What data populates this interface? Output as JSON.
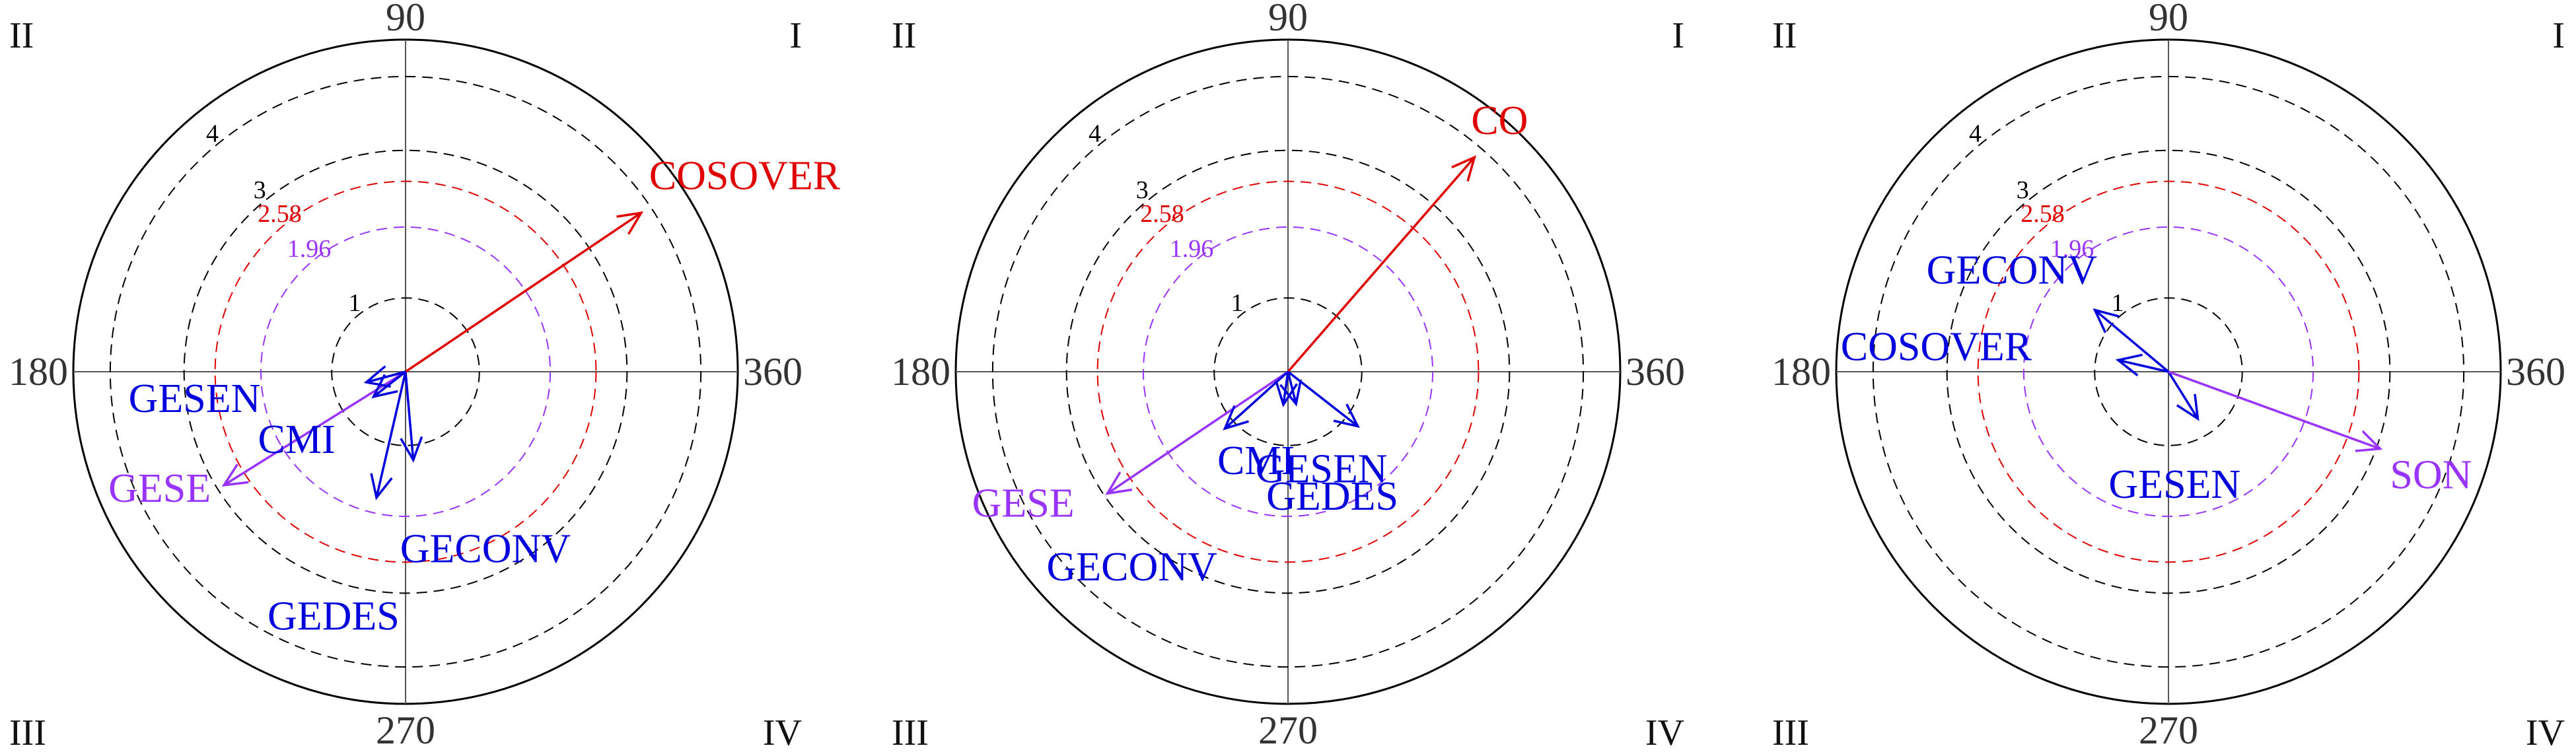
{
  "chart_data": [
    {
      "type": "polar-vector",
      "radius_max": 4.5,
      "rings": [
        {
          "value": 1,
          "label": "1",
          "color": "#000000"
        },
        {
          "value": 1.96,
          "label": "1.96",
          "color": "#9933ff"
        },
        {
          "value": 2.58,
          "label": "2.58",
          "color": "#e00000"
        },
        {
          "value": 3,
          "label": "3",
          "color": "#000000"
        },
        {
          "value": 4,
          "label": "4",
          "color": "#000000"
        }
      ],
      "angle_ticks": [
        "90",
        "180",
        "270",
        "360"
      ],
      "quadrant_labels": [
        "I",
        "II",
        "III",
        "IV"
      ],
      "vectors": [
        {
          "name": "COSOVER",
          "angle_deg": 34,
          "magnitude": 3.85,
          "color": "#e00000"
        },
        {
          "name": "GESE",
          "angle_deg": 212,
          "magnitude": 2.9,
          "color": "#9933ff"
        },
        {
          "name": "GESEN",
          "angle_deg": 195,
          "magnitude": 0.55,
          "color": "#0000dd"
        },
        {
          "name": "CMI",
          "angle_deg": 218,
          "magnitude": 0.55,
          "color": "#0000dd"
        },
        {
          "name": "GEDES",
          "angle_deg": 257,
          "magnitude": 1.75,
          "color": "#0000dd"
        },
        {
          "name": "GECONV",
          "angle_deg": 275,
          "magnitude": 1.2,
          "color": "#0000dd"
        }
      ]
    },
    {
      "type": "polar-vector",
      "radius_max": 4.5,
      "rings": [
        {
          "value": 1,
          "label": "1",
          "color": "#000000"
        },
        {
          "value": 1.96,
          "label": "1.96",
          "color": "#9933ff"
        },
        {
          "value": 2.58,
          "label": "2.58",
          "color": "#e00000"
        },
        {
          "value": 3,
          "label": "3",
          "color": "#000000"
        },
        {
          "value": 4,
          "label": "4",
          "color": "#000000"
        }
      ],
      "angle_ticks": [
        "90",
        "180",
        "270",
        "360"
      ],
      "quadrant_labels": [
        "I",
        "II",
        "III",
        "IV"
      ],
      "vectors": [
        {
          "name": "CO",
          "angle_deg": 49,
          "magnitude": 3.85,
          "color": "#e00000"
        },
        {
          "name": "GESE",
          "angle_deg": 214,
          "magnitude": 2.95,
          "color": "#9933ff"
        },
        {
          "name": "GECONV",
          "angle_deg": 222,
          "magnitude": 1.15,
          "color": "#0000dd"
        },
        {
          "name": "CMI",
          "angle_deg": 262,
          "magnitude": 0.45,
          "color": "#0000dd"
        },
        {
          "name": "GEDES",
          "angle_deg": 284,
          "magnitude": 0.45,
          "color": "#0000dd"
        },
        {
          "name": "GESEN",
          "angle_deg": 322,
          "magnitude": 1.2,
          "color": "#0000dd"
        }
      ]
    },
    {
      "type": "polar-vector",
      "radius_max": 4.5,
      "rings": [
        {
          "value": 1,
          "label": "1",
          "color": "#000000"
        },
        {
          "value": 1.96,
          "label": "1.96",
          "color": "#9933ff"
        },
        {
          "value": 2.58,
          "label": "2.58",
          "color": "#e00000"
        },
        {
          "value": 3,
          "label": "3",
          "color": "#000000"
        },
        {
          "value": 4,
          "label": "4",
          "color": "#000000"
        }
      ],
      "angle_ticks": [
        "90",
        "180",
        "270",
        "360"
      ],
      "quadrant_labels": [
        "I",
        "II",
        "III",
        "IV"
      ],
      "vectors": [
        {
          "name": "GECONV",
          "angle_deg": 140,
          "magnitude": 1.3,
          "color": "#0000dd"
        },
        {
          "name": "COSOVER",
          "angle_deg": 167,
          "magnitude": 0.7,
          "color": "#0000dd"
        },
        {
          "name": "GESEN",
          "angle_deg": 302,
          "magnitude": 0.75,
          "color": "#0000dd"
        },
        {
          "name": "SON",
          "angle_deg": 340,
          "magnitude": 3.05,
          "color": "#9933ff"
        }
      ]
    }
  ]
}
